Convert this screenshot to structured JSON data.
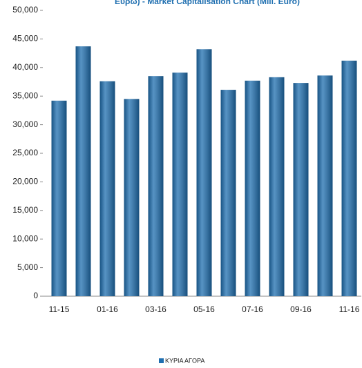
{
  "chart_data": {
    "type": "bar",
    "title": "Ευρώ) - Market Capitalisation Chart (Mill. Euro)",
    "categories": [
      "11-15",
      null,
      "01-16",
      null,
      "03-16",
      null,
      "05-16",
      null,
      "07-16",
      null,
      "09-16",
      null,
      "11-16"
    ],
    "series": [
      {
        "name": "ΚΥΡΙΑ ΑΓΟΡΑ",
        "color": "#1f6fb0",
        "values": [
          34200,
          43700,
          37600,
          34500,
          38500,
          39100,
          43200,
          36100,
          37700,
          38300,
          37300,
          38600,
          41200
        ]
      }
    ],
    "ylim": [
      0,
      50000
    ],
    "yticks": [
      0,
      {
        "value": 5000,
        "label": "5,000"
      },
      {
        "value": 10000,
        "label": "10,000"
      },
      {
        "value": 15000,
        "label": "15,000"
      },
      {
        "value": 20000,
        "label": "20,000"
      },
      {
        "value": 25000,
        "label": "25,000"
      },
      {
        "value": 30000,
        "label": "30,000"
      },
      {
        "value": 35000,
        "label": "35,000"
      },
      {
        "value": 40000,
        "label": "40,000"
      },
      {
        "value": 45000,
        "label": "45,000"
      },
      {
        "value": 50000,
        "label": "50,000"
      }
    ],
    "grid": false
  }
}
